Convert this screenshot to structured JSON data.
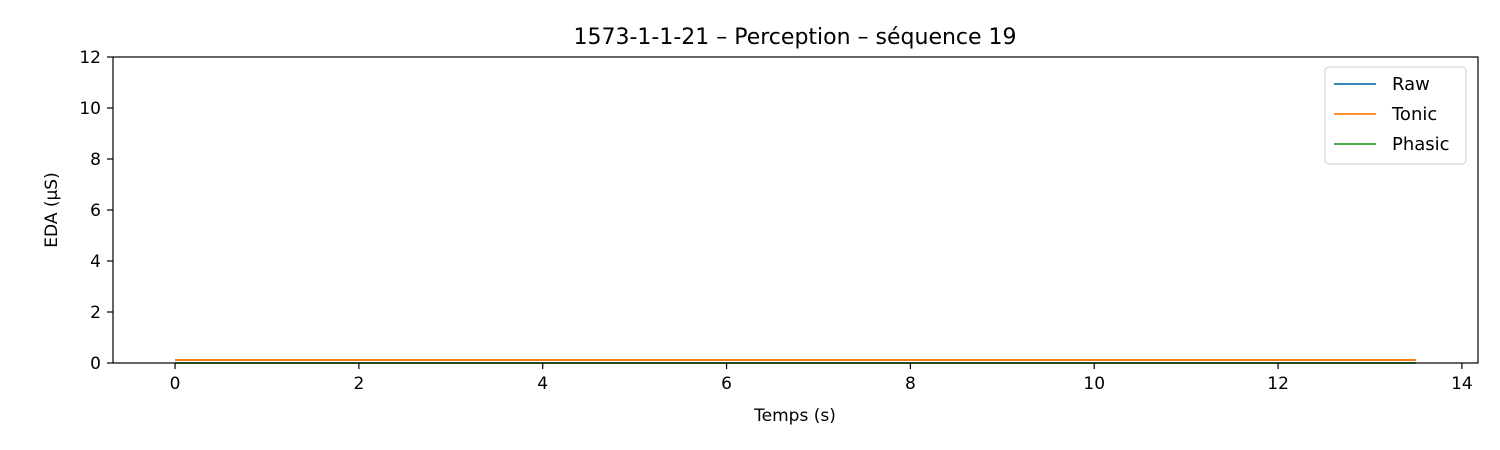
{
  "chart_data": {
    "type": "line",
    "title": "1573-1-1-21 – Perception – séquence 19",
    "xlabel": "Temps (s)",
    "ylabel": "EDA (µS)",
    "xlim": [
      -0.675,
      14.175
    ],
    "ylim": [
      0,
      12
    ],
    "xticks": [
      0,
      2,
      4,
      6,
      8,
      10,
      12,
      14
    ],
    "yticks": [
      0,
      2,
      4,
      6,
      8,
      10,
      12
    ],
    "xtick_labels": [
      "0",
      "2",
      "4",
      "6",
      "8",
      "10",
      "12",
      "14"
    ],
    "ytick_labels": [
      "0",
      "2",
      "4",
      "6",
      "8",
      "10",
      "12"
    ],
    "legend_position": "top-right",
    "series": [
      {
        "name": "Raw",
        "color": "#1f77b4",
        "x": [
          0,
          13.5
        ],
        "y": [
          0.12,
          0.12
        ]
      },
      {
        "name": "Tonic",
        "color": "#ff7f0e",
        "x": [
          0,
          13.5
        ],
        "y": [
          0.12,
          0.12
        ]
      },
      {
        "name": "Phasic",
        "color": "#2ca02c",
        "x": [
          0,
          13.5
        ],
        "y": [
          0.0,
          0.0
        ]
      }
    ]
  }
}
